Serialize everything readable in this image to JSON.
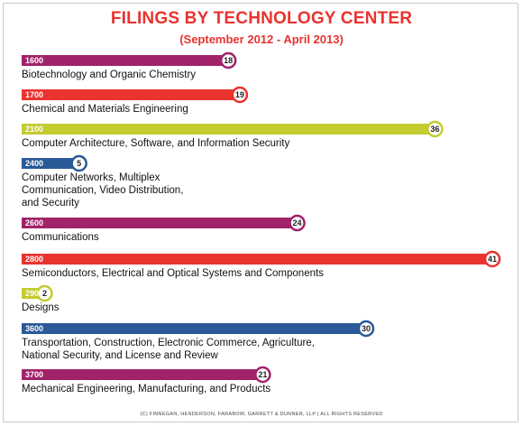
{
  "title": "FILINGS BY TECHNOLOGY CENTER",
  "subtitle": "(September 2012 - April 2013)",
  "footer": "(C) FINNEGAN, HENDERSON, FARABOW, GARRETT & DUNNER, LLP | ALL RIGHTS RESERVED",
  "colors": {
    "purple": "#a0236a",
    "red": "#e8332f",
    "lime": "#c3cb2f",
    "blue": "#2a5a97",
    "title": "#e8332f"
  },
  "chart_data": {
    "type": "bar",
    "orientation": "horizontal",
    "title": "FILINGS BY TECHNOLOGY CENTER",
    "subtitle": "(September 2012 - April 2013)",
    "xlim": [
      0,
      41
    ],
    "items": [
      {
        "code": "1600",
        "value": 18,
        "color": "purple",
        "label": [
          "Biotechnology and Organic Chemistry"
        ]
      },
      {
        "code": "1700",
        "value": 19,
        "color": "red",
        "label": [
          "Chemical and Materials Engineering"
        ]
      },
      {
        "code": "2100",
        "value": 36,
        "color": "lime",
        "label": [
          "Computer Architecture, Software, and Information Security"
        ]
      },
      {
        "code": "2400",
        "value": 5,
        "color": "blue",
        "label": [
          "Computer Networks, Multiplex",
          "Communication, Video Distribution,",
          "and Security"
        ]
      },
      {
        "code": "2600",
        "value": 24,
        "color": "purple",
        "label": [
          "Communications"
        ]
      },
      {
        "code": "2800",
        "value": 41,
        "color": "red",
        "label": [
          "Semiconductors, Electrical and Optical Systems and Components"
        ]
      },
      {
        "code": "2900",
        "value": 2,
        "color": "lime",
        "label": [
          "Designs"
        ]
      },
      {
        "code": "3600",
        "value": 30,
        "color": "blue",
        "label": [
          "Transportation, Construction, Electronic Commerce,  Agriculture,",
          "National Security, and License and Review"
        ]
      },
      {
        "code": "3700",
        "value": 21,
        "color": "purple",
        "label": [
          "Mechanical Engineering, Manufacturing, and Products"
        ]
      }
    ]
  }
}
